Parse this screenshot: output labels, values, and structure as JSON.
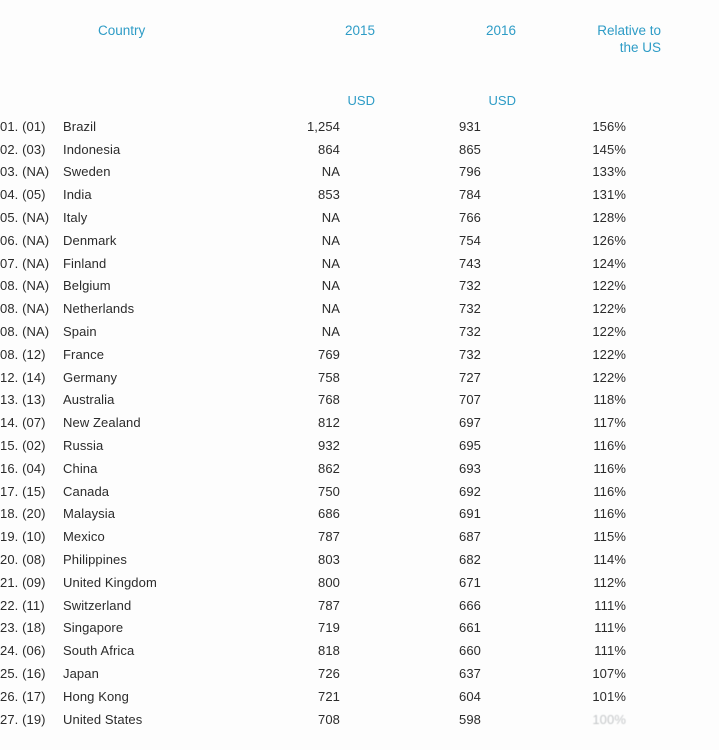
{
  "colors": {
    "header_blue": "#2e9cc6",
    "body_text": "#2b2b2b",
    "background": "#fdfdfd"
  },
  "table": {
    "headers": {
      "country": "Country",
      "year_2015": "2015",
      "year_2016": "2016",
      "relative_line1": "Relative to",
      "relative_line2": "the US"
    },
    "subheaders": {
      "usd_2015": "USD",
      "usd_2016": "USD"
    },
    "rows": [
      {
        "rank": "01. (01)",
        "country": "Brazil",
        "v2015": "1,254",
        "v2016": "931",
        "relative": "156%"
      },
      {
        "rank": "02. (03)",
        "country": "Indonesia",
        "v2015": "864",
        "v2016": "865",
        "relative": "145%"
      },
      {
        "rank": "03. (NA)",
        "country": "Sweden",
        "v2015": "NA",
        "v2016": "796",
        "relative": "133%"
      },
      {
        "rank": "04. (05)",
        "country": "India",
        "v2015": "853",
        "v2016": "784",
        "relative": "131%"
      },
      {
        "rank": "05. (NA)",
        "country": "Italy",
        "v2015": "NA",
        "v2016": "766",
        "relative": "128%"
      },
      {
        "rank": "06. (NA)",
        "country": "Denmark",
        "v2015": "NA",
        "v2016": "754",
        "relative": "126%"
      },
      {
        "rank": "07. (NA)",
        "country": "Finland",
        "v2015": "NA",
        "v2016": "743",
        "relative": "124%"
      },
      {
        "rank": "08. (NA)",
        "country": "Belgium",
        "v2015": "NA",
        "v2016": "732",
        "relative": "122%"
      },
      {
        "rank": "08. (NA)",
        "country": "Netherlands",
        "v2015": "NA",
        "v2016": "732",
        "relative": "122%"
      },
      {
        "rank": "08. (NA)",
        "country": "Spain",
        "v2015": "NA",
        "v2016": "732",
        "relative": "122%"
      },
      {
        "rank": "08. (12)",
        "country": "France",
        "v2015": "769",
        "v2016": "732",
        "relative": "122%"
      },
      {
        "rank": "12. (14)",
        "country": "Germany",
        "v2015": "758",
        "v2016": "727",
        "relative": "122%"
      },
      {
        "rank": "13. (13)",
        "country": "Australia",
        "v2015": "768",
        "v2016": "707",
        "relative": "118%"
      },
      {
        "rank": "14. (07)",
        "country": "New Zealand",
        "v2015": "812",
        "v2016": "697",
        "relative": "117%"
      },
      {
        "rank": "15. (02)",
        "country": "Russia",
        "v2015": "932",
        "v2016": "695",
        "relative": "116%"
      },
      {
        "rank": "16. (04)",
        "country": "China",
        "v2015": "862",
        "v2016": "693",
        "relative": "116%"
      },
      {
        "rank": "17. (15)",
        "country": "Canada",
        "v2015": "750",
        "v2016": "692",
        "relative": "116%"
      },
      {
        "rank": "18. (20)",
        "country": "Malaysia",
        "v2015": "686",
        "v2016": "691",
        "relative": "116%"
      },
      {
        "rank": "19. (10)",
        "country": "Mexico",
        "v2015": "787",
        "v2016": "687",
        "relative": "115%"
      },
      {
        "rank": "20. (08)",
        "country": "Philippines",
        "v2015": "803",
        "v2016": "682",
        "relative": "114%"
      },
      {
        "rank": "21. (09)",
        "country": "United Kingdom",
        "v2015": "800",
        "v2016": "671",
        "relative": "112%"
      },
      {
        "rank": "22. (11)",
        "country": "Switzerland",
        "v2015": "787",
        "v2016": "666",
        "relative": "111%"
      },
      {
        "rank": "23. (18)",
        "country": "Singapore",
        "v2015": "719",
        "v2016": "661",
        "relative": "111%"
      },
      {
        "rank": "24. (06)",
        "country": "South Africa",
        "v2015": "818",
        "v2016": "660",
        "relative": "111%"
      },
      {
        "rank": "25. (16)",
        "country": "Japan",
        "v2015": "726",
        "v2016": "637",
        "relative": "107%"
      },
      {
        "rank": "26. (17)",
        "country": "Hong Kong",
        "v2015": "721",
        "v2016": "604",
        "relative": "101%"
      },
      {
        "rank": "27. (19)",
        "country": "United States",
        "v2015": "708",
        "v2016": "598",
        "relative": "100%",
        "faded": true
      }
    ]
  }
}
